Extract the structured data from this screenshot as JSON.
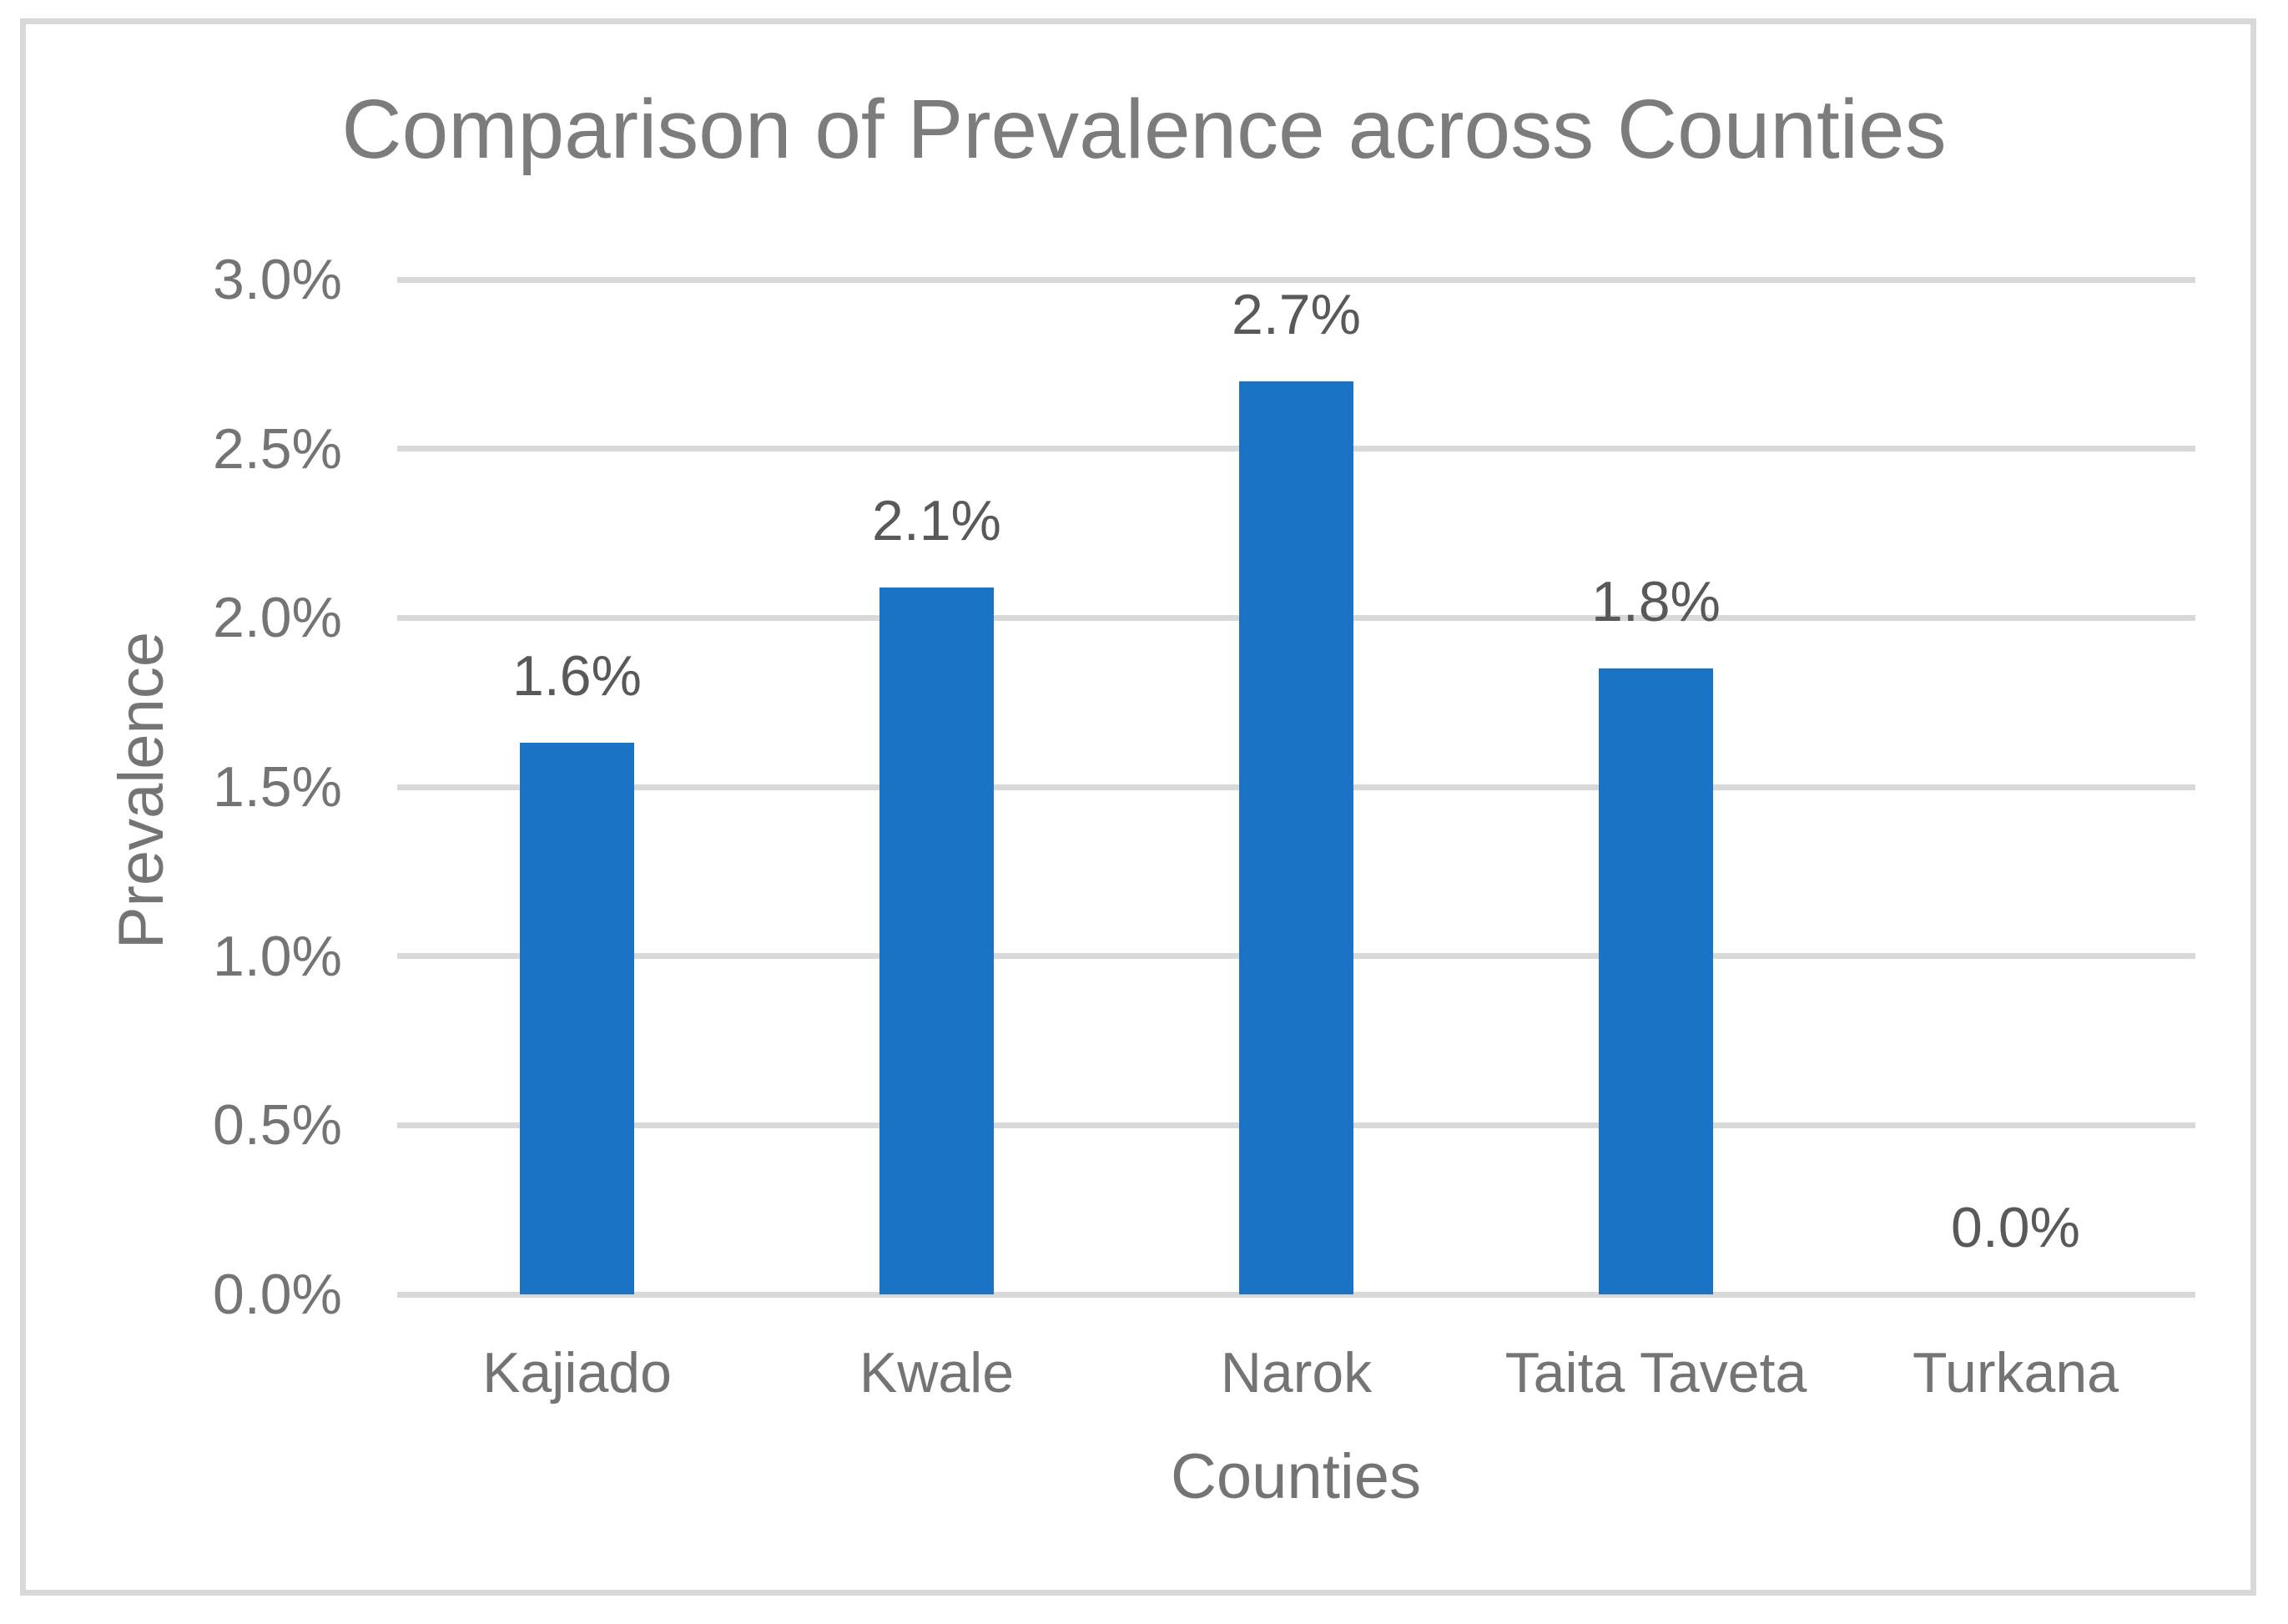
{
  "chart": {
    "bar_color": "#1b73c6",
    "grid_color": "#d9d9d9",
    "frame_color": "#d9d9d9",
    "title_color": "#7c7c7c",
    "axis_text_color": "#747474",
    "data_label_color": "#595959",
    "background_color": "#ffffff"
  },
  "chart_data": {
    "type": "bar",
    "title": "Comparison of Prevalence across Counties",
    "xlabel": "Counties",
    "ylabel": "Prevalence",
    "categories": [
      "Kajiado",
      "Kwale",
      "Narok",
      "Taita Taveta",
      "Turkana"
    ],
    "values": [
      1.63,
      2.09,
      2.7,
      1.85,
      0.0
    ],
    "data_labels": [
      "1.6%",
      "2.1%",
      "2.7%",
      "1.8%",
      "0.0%"
    ],
    "ylim": [
      0,
      3.0
    ],
    "ytick_step": 0.5,
    "ytick_labels": [
      "0.0%",
      "0.5%",
      "1.0%",
      "1.5%",
      "2.0%",
      "2.5%",
      "3.0%"
    ],
    "grid": true,
    "legend": false,
    "series_count": 1
  }
}
